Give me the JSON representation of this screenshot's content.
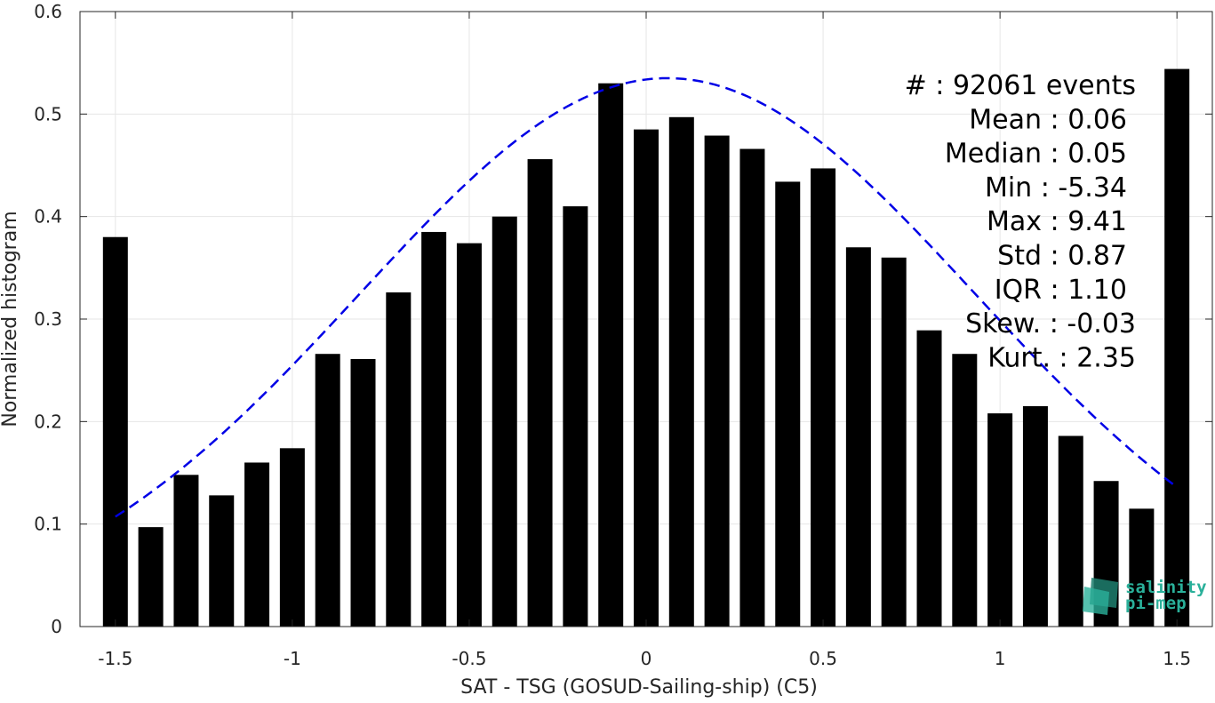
{
  "chart_data": {
    "type": "bar",
    "xlabel": "SAT - TSG (GOSUD-Sailing-ship) (C5)",
    "ylabel": "Normalized histogram",
    "xlim": [
      -1.6,
      1.6
    ],
    "ylim": [
      0,
      0.6
    ],
    "grid": true,
    "x_ticks": [
      -1.5,
      -1,
      -0.5,
      0,
      0.5,
      1,
      1.5
    ],
    "x_tick_labels": [
      "-1.5",
      "-1",
      "-0.5",
      "0",
      "0.5",
      "1",
      "1.5"
    ],
    "y_ticks": [
      0,
      0.1,
      0.2,
      0.3,
      0.4,
      0.5,
      0.6
    ],
    "y_tick_labels": [
      "0",
      "0.1",
      "0.2",
      "0.3",
      "0.4",
      "0.5",
      "0.6"
    ],
    "bin_width": 0.1,
    "bars": {
      "x": [
        -1.5,
        -1.4,
        -1.3,
        -1.2,
        -1.1,
        -1.0,
        -0.9,
        -0.8,
        -0.7,
        -0.6,
        -0.5,
        -0.4,
        -0.3,
        -0.2,
        -0.1,
        0.0,
        0.1,
        0.2,
        0.3,
        0.4,
        0.5,
        0.6,
        0.7,
        0.8,
        0.9,
        1.0,
        1.1,
        1.2,
        1.3,
        1.4,
        1.5
      ],
      "values": [
        0.38,
        0.097,
        0.148,
        0.128,
        0.16,
        0.174,
        0.266,
        0.261,
        0.326,
        0.385,
        0.374,
        0.4,
        0.456,
        0.41,
        0.53,
        0.485,
        0.497,
        0.479,
        0.466,
        0.434,
        0.447,
        0.37,
        0.36,
        0.289,
        0.266,
        0.208,
        0.215,
        0.186,
        0.142,
        0.115,
        0.544
      ],
      "color": "#000000"
    },
    "fit_curve": {
      "style": "dashed",
      "color": "#0000e6",
      "mean": 0.06,
      "std": 0.87,
      "peak": 0.535,
      "x_range": [
        -1.5,
        1.5
      ]
    },
    "stats": [
      "#  : 92061 events",
      "Mean : 0.06",
      "Median : 0.05",
      "Min : -5.34",
      "Max : 9.41",
      "Std : 0.87",
      "IQR : 1.10",
      "Skew. : -0.03",
      "Kurt. : 2.35"
    ]
  },
  "logo": {
    "line1": "salinity",
    "line2": "pi-mep",
    "color": "#2ab09a"
  }
}
